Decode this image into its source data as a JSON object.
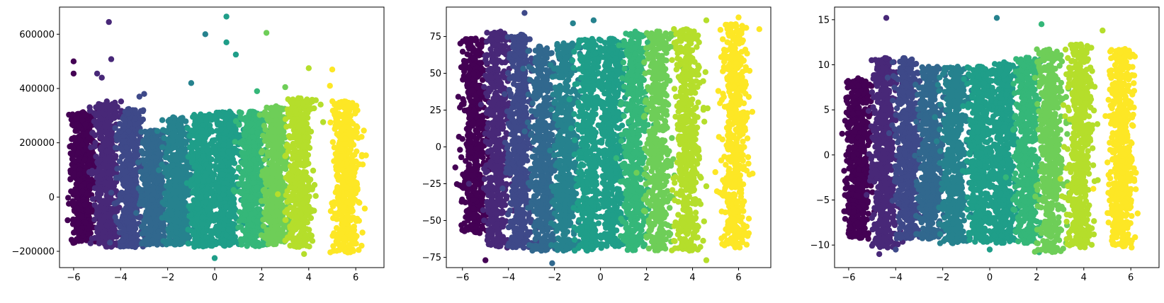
{
  "chart_data": [
    {
      "type": "scatter",
      "title": "",
      "xlabel": "",
      "ylabel": "",
      "xlim": [
        -6.6,
        7.2
      ],
      "ylim": [
        -260000,
        700000
      ],
      "xticks": [
        -6,
        -4,
        -2,
        0,
        2,
        4,
        6
      ],
      "xtick_labels": [
        "−6",
        "−4",
        "−2",
        "0",
        "2",
        "4",
        "6"
      ],
      "yticks": [
        -200000,
        0,
        200000,
        400000,
        600000
      ],
      "ytick_labels": [
        "−200000",
        "0",
        "200000",
        "400000",
        "600000"
      ],
      "grid": false,
      "colormap": "viridis",
      "series": [
        {
          "color": "#440154",
          "x_center": -5.6,
          "y_low": -175000,
          "y_high": 320000,
          "outliers": [
            [
              -6.0,
              500000
            ],
            [
              -6.0,
              455000
            ]
          ]
        },
        {
          "color": "#482878",
          "x_center": -4.6,
          "y_low": -190000,
          "y_high": 360000,
          "outliers": [
            [
              -4.5,
              645000
            ],
            [
              -4.4,
              508000
            ],
            [
              -5.0,
              455000
            ],
            [
              -4.8,
              440000
            ]
          ]
        },
        {
          "color": "#3e4989",
          "x_center": -3.6,
          "y_low": -190000,
          "y_high": 330000,
          "outliers": [
            [
              -3.2,
              370000
            ],
            [
              -3.0,
              380000
            ]
          ]
        },
        {
          "color": "#31688e",
          "x_center": -2.6,
          "y_low": -180000,
          "y_high": 250000,
          "outliers": []
        },
        {
          "color": "#26828e",
          "x_center": -1.6,
          "y_low": -180000,
          "y_high": 300000,
          "outliers": [
            [
              -1.0,
              420000
            ],
            [
              -0.4,
              600000
            ]
          ]
        },
        {
          "color": "#1f9e89",
          "x_center": -0.5,
          "y_low": -190000,
          "y_high": 310000,
          "outliers": [
            [
              0.0,
              -225000
            ],
            [
              0.5,
              665000
            ],
            [
              0.5,
              570000
            ],
            [
              0.9,
              525000
            ]
          ]
        },
        {
          "color": "#1f9e89",
          "x_center": 0.5,
          "y_low": -185000,
          "y_high": 320000,
          "outliers": []
        },
        {
          "color": "#35b779",
          "x_center": 1.6,
          "y_low": -190000,
          "y_high": 320000,
          "outliers": [
            [
              1.8,
              390000
            ]
          ]
        },
        {
          "color": "#6ece58",
          "x_center": 2.6,
          "y_low": -180000,
          "y_high": 340000,
          "outliers": [
            [
              2.2,
              605000
            ],
            [
              3.0,
              405000
            ]
          ]
        },
        {
          "color": "#b5de2b",
          "x_center": 3.6,
          "y_low": -190000,
          "y_high": 370000,
          "outliers": [
            [
              4.0,
              475000
            ],
            [
              3.8,
              -210000
            ]
          ]
        },
        {
          "color": "#fde725",
          "x_center": 5.6,
          "y_low": -210000,
          "y_high": 360000,
          "outliers": [
            [
              5.0,
              470000
            ],
            [
              4.9,
              410000
            ]
          ]
        }
      ]
    },
    {
      "type": "scatter",
      "title": "",
      "xlabel": "",
      "ylabel": "",
      "xlim": [
        -6.7,
        7.4
      ],
      "ylim": [
        -82,
        95
      ],
      "xticks": [
        -6,
        -4,
        -2,
        0,
        2,
        4,
        6
      ],
      "xtick_labels": [
        "−6",
        "−4",
        "−2",
        "0",
        "2",
        "4",
        "6"
      ],
      "yticks": [
        -75,
        -50,
        -25,
        0,
        25,
        50,
        75
      ],
      "ytick_labels": [
        "−75",
        "−50",
        "−25",
        "0",
        "25",
        "50",
        "75"
      ],
      "grid": false,
      "colormap": "viridis",
      "series": [
        {
          "color": "#440154",
          "x_center": -5.5,
          "y_low": -60,
          "y_high": 75,
          "outliers": [
            [
              -5.0,
              -77
            ]
          ]
        },
        {
          "color": "#482878",
          "x_center": -4.5,
          "y_low": -70,
          "y_high": 80,
          "outliers": []
        },
        {
          "color": "#3e4989",
          "x_center": -3.5,
          "y_low": -70,
          "y_high": 78,
          "outliers": [
            [
              -3.3,
              91
            ]
          ]
        },
        {
          "color": "#31688e",
          "x_center": -2.5,
          "y_low": -72,
          "y_high": 70,
          "outliers": [
            [
              -2.1,
              -79
            ]
          ]
        },
        {
          "color": "#26828e",
          "x_center": -1.5,
          "y_low": -72,
          "y_high": 72,
          "outliers": [
            [
              -1.2,
              84
            ],
            [
              -0.3,
              86
            ]
          ]
        },
        {
          "color": "#1f9e89",
          "x_center": -0.5,
          "y_low": -72,
          "y_high": 75,
          "outliers": []
        },
        {
          "color": "#1f9e89",
          "x_center": 0.5,
          "y_low": -70,
          "y_high": 75,
          "outliers": []
        },
        {
          "color": "#35b779",
          "x_center": 1.5,
          "y_low": -72,
          "y_high": 80,
          "outliers": []
        },
        {
          "color": "#6ece58",
          "x_center": 2.5,
          "y_low": -72,
          "y_high": 80,
          "outliers": []
        },
        {
          "color": "#b5de2b",
          "x_center": 3.8,
          "y_low": -72,
          "y_high": 82,
          "outliers": [
            [
              4.6,
              -77
            ],
            [
              4.6,
              86
            ]
          ]
        },
        {
          "color": "#fde725",
          "x_center": 5.8,
          "y_low": -70,
          "y_high": 85,
          "outliers": [
            [
              6.0,
              88
            ],
            [
              6.9,
              80
            ]
          ]
        }
      ]
    },
    {
      "type": "scatter",
      "title": "",
      "xlabel": "",
      "ylabel": "",
      "xlim": [
        -6.6,
        7.2
      ],
      "ylim": [
        -12.5,
        16.4
      ],
      "xticks": [
        -6,
        -4,
        -2,
        0,
        2,
        4,
        6
      ],
      "xtick_labels": [
        "−6",
        "−4",
        "−2",
        "0",
        "2",
        "4",
        "6"
      ],
      "yticks": [
        -10,
        -5,
        0,
        5,
        10,
        15
      ],
      "ytick_labels": [
        "−10",
        "−5",
        "0",
        "5",
        "10",
        "15"
      ],
      "grid": false,
      "colormap": "viridis",
      "series": [
        {
          "color": "#440154",
          "x_center": -5.6,
          "y_low": -9.5,
          "y_high": 8.5,
          "outliers": [
            [
              -5.6,
              8.5
            ]
          ]
        },
        {
          "color": "#482878",
          "x_center": -4.5,
          "y_low": -10.5,
          "y_high": 11,
          "outliers": [
            [
              -4.4,
              15.2
            ],
            [
              -4.7,
              -11
            ]
          ]
        },
        {
          "color": "#3e4989",
          "x_center": -3.5,
          "y_low": -9.5,
          "y_high": 11,
          "outliers": [
            [
              -4.0,
              -10.5
            ]
          ]
        },
        {
          "color": "#31688e",
          "x_center": -2.5,
          "y_low": -9.5,
          "y_high": 10,
          "outliers": []
        },
        {
          "color": "#26828e",
          "x_center": -1.5,
          "y_low": -10,
          "y_high": 10,
          "outliers": [
            [
              0.3,
              15.2
            ]
          ]
        },
        {
          "color": "#1f9e89",
          "x_center": -0.4,
          "y_low": -10,
          "y_high": 10,
          "outliers": [
            [
              0.0,
              -10.5
            ]
          ]
        },
        {
          "color": "#1f9e89",
          "x_center": 0.6,
          "y_low": -10,
          "y_high": 10.5,
          "outliers": []
        },
        {
          "color": "#35b779",
          "x_center": 1.6,
          "y_low": -10,
          "y_high": 11,
          "outliers": [
            [
              2.2,
              14.5
            ],
            [
              2.1,
              -10.8
            ]
          ]
        },
        {
          "color": "#6ece58",
          "x_center": 2.6,
          "y_low": -11,
          "y_high": 12,
          "outliers": []
        },
        {
          "color": "#b5de2b",
          "x_center": 3.8,
          "y_low": -10.5,
          "y_high": 12.5,
          "outliers": [
            [
              4.8,
              13.8
            ]
          ]
        },
        {
          "color": "#fde725",
          "x_center": 5.6,
          "y_low": -10.5,
          "y_high": 12,
          "outliers": []
        }
      ]
    }
  ]
}
